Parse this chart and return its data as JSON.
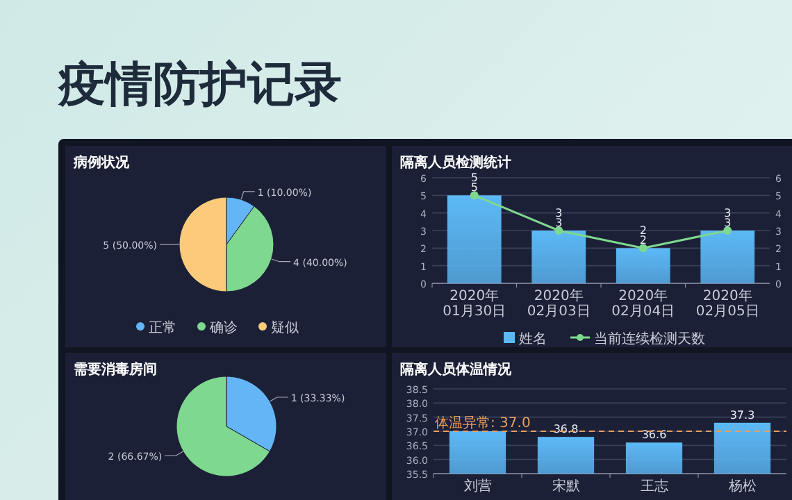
{
  "chart_data": [
    {
      "type": "other",
      "title": "疫情防护记录"
    },
    {
      "type": "pie",
      "title": "病例状况",
      "categories": [
        "正常",
        "确诊",
        "疑似"
      ],
      "values": [
        1,
        4,
        5
      ],
      "colors": [
        "#64b5f6",
        "#7ed88f",
        "#fbcb7b"
      ],
      "value_labels": [
        "1 (10.00%)",
        "4 (40.00%)",
        "5 (50.00%)"
      ],
      "legend": "bottom"
    },
    {
      "type": "bar",
      "title": "隔离人员检测统计",
      "categories": [
        "2020年01月30日",
        "2020年02月03日",
        "2020年02月04日",
        "2020年02月05日"
      ],
      "series": [
        {
          "name": "姓名",
          "color": "#5cb9f6",
          "values": [
            5,
            3,
            2,
            3
          ]
        },
        {
          "name": "当前连续检测天数",
          "type": "line",
          "axis": "y2",
          "color": "#7ed88f",
          "values": [
            5,
            3,
            2,
            3
          ]
        }
      ],
      "ylim": [
        0,
        6
      ],
      "yticks": [
        0,
        1,
        2,
        3,
        4,
        5,
        6
      ],
      "y2lim": [
        0,
        6
      ],
      "y2ticks": [
        0,
        1,
        2,
        3,
        4,
        5,
        6
      ],
      "grid": "y",
      "legend": "bottom",
      "data_labels": true,
      "marker": "circle"
    },
    {
      "type": "pie",
      "title": "需要消毒房间",
      "categories": [
        null,
        null
      ],
      "values": [
        1,
        2
      ],
      "colors": [
        "#64b5f6",
        "#7ed88f"
      ],
      "value_labels": [
        "1 (33.33%)",
        "2 (66.67%)"
      ]
    },
    {
      "type": "bar",
      "title": "隔离人员体温情况",
      "categories": [
        "刘营",
        "宋默",
        "王志",
        "杨松"
      ],
      "values": [
        37.0,
        36.8,
        36.6,
        37.3
      ],
      "color": "#5cb9f6",
      "value_labels": [
        null,
        "36.8",
        "36.6",
        "37.3"
      ],
      "ylim": [
        35.5,
        38.5
      ],
      "yticks": [
        {
          "value": 35.5,
          "label": "35.5"
        },
        {
          "value": 36,
          "label": "36.0"
        },
        {
          "value": 36.5,
          "label": "36.5"
        },
        {
          "value": 37,
          "label": "37.0"
        },
        {
          "value": 37.5,
          "label": "37.5"
        },
        {
          "value": 38,
          "label": "38.0"
        },
        {
          "value": 38.5,
          "label": "38.5"
        }
      ],
      "grid": "y",
      "ref_lines": [
        {
          "axis": "y",
          "value": 37,
          "label": "体温异常: 37.0",
          "color": "#e8a060",
          "line_style": "dashed"
        }
      ]
    }
  ]
}
